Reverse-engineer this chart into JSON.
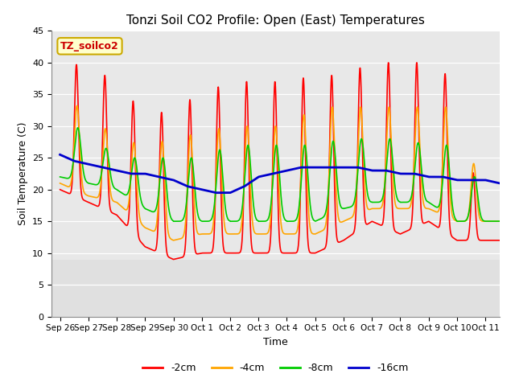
{
  "title": "Tonzi Soil CO2 Profile: Open (East) Temperatures",
  "xlabel": "Time",
  "ylabel": "Soil Temperature (C)",
  "ylim": [
    0,
    45
  ],
  "yticks": [
    0,
    5,
    10,
    15,
    20,
    25,
    30,
    35,
    40,
    45
  ],
  "x_tick_labels": [
    "Sep 26",
    "Sep 27",
    "Sep 28",
    "Sep 29",
    "Sep 30",
    "Oct 1",
    "Oct 2",
    "Oct 3",
    "Oct 4",
    "Oct 5",
    "Oct 6",
    "Oct 7",
    "Oct 8",
    "Oct 9",
    "Oct 10",
    "Oct 11"
  ],
  "colors": {
    "2cm": "#ff0000",
    "4cm": "#ffa500",
    "8cm": "#00cc00",
    "16cm": "#0000cc"
  },
  "line_widths": {
    "2cm": 1.2,
    "4cm": 1.2,
    "8cm": 1.2,
    "16cm": 2.0
  },
  "legend_label": "TZ_soilco2",
  "plot_bg_color": "#e0e0e0",
  "lower_bg_color": "#c8c8c8",
  "legend_entries": [
    "-2cm",
    "-4cm",
    "-8cm",
    "-16cm"
  ],
  "annotation_box_color": "#ffffcc",
  "annotation_text_color": "#cc0000",
  "annotation_border_color": "#ccaa00"
}
